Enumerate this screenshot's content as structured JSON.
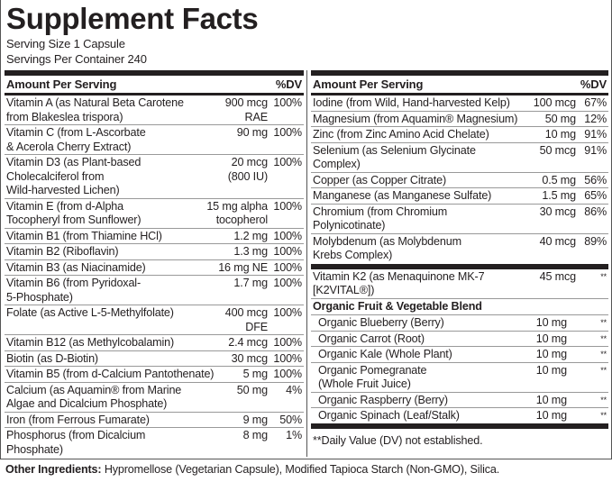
{
  "title": "Supplement Facts",
  "serving_size": "Serving Size 1 Capsule",
  "servings_per_container": "Servings Per Container 240",
  "header": {
    "amount": "Amount Per Serving",
    "dv": "%DV"
  },
  "left": [
    {
      "name": "Vitamin A (as Natural Beta Carotene\n from Blakeslea trispora)",
      "amount": "900 mcg\nRAE",
      "dv": "100%"
    },
    {
      "name": "Vitamin C (from L-Ascorbate\n & Acerola Cherry Extract)",
      "amount": "90 mg",
      "dv": "100%"
    },
    {
      "name": "Vitamin D3 (as Plant-based\n Cholecalciferol from\n  Wild-harvested Lichen)",
      "amount": "20 mcg\n(800 IU)",
      "dv": "100%"
    },
    {
      "name": "Vitamin E (from d-Alpha\n Tocopheryl from Sunflower)",
      "amount": "15 mg alpha\ntocopherol",
      "dv": "100%"
    },
    {
      "name": "Vitamin B1 (from Thiamine HCl)",
      "amount": "1.2 mg",
      "dv": "100%"
    },
    {
      "name": "Vitamin B2 (Riboflavin)",
      "amount": "1.3 mg",
      "dv": "100%"
    },
    {
      "name": "Vitamin B3 (as Niacinamide)",
      "amount": "16 mg NE",
      "dv": "100%"
    },
    {
      "name": "Vitamin B6 (from Pyridoxal-\n 5-Phosphate)",
      "amount": "1.7 mg",
      "dv": "100%"
    },
    {
      "name": "Folate (as Active L-5-Methylfolate)",
      "amount": "400 mcg\nDFE",
      "dv": "100%"
    },
    {
      "name": "Vitamin B12 (as Methylcobalamin)",
      "amount": "2.4 mcg",
      "dv": "100%"
    },
    {
      "name": "Biotin (as D-Biotin)",
      "amount": "30 mcg",
      "dv": "100%"
    },
    {
      "name": "Vitamin B5 (from d-Calcium Pantothenate)",
      "amount": "5 mg",
      "dv": "100%"
    },
    {
      "name": "Calcium (as Aquamin® from Marine\n Algae and Dicalcium Phosphate)",
      "amount": "50 mg",
      "dv": "4%"
    },
    {
      "name": "Iron (from Ferrous Fumarate)",
      "amount": "9 mg",
      "dv": "50%"
    },
    {
      "name": "Phosphorus (from Dicalcium\n Phosphate)",
      "amount": "8 mg",
      "dv": "1%"
    }
  ],
  "right": [
    {
      "name": "Iodine (from Wild, Hand-harvested Kelp)",
      "amount": "100 mcg",
      "dv": "67%"
    },
    {
      "name": "Magnesium (from Aquamin® Magnesium)",
      "amount": "50 mg",
      "dv": "12%"
    },
    {
      "name": "Zinc (from Zinc Amino Acid Chelate)",
      "amount": "10 mg",
      "dv": "91%"
    },
    {
      "name": "Selenium (as Selenium Glycinate\n Complex)",
      "amount": "50 mcg",
      "dv": "91%"
    },
    {
      "name": "Copper (as Copper Citrate)",
      "amount": "0.5 mg",
      "dv": "56%"
    },
    {
      "name": "Manganese (as Manganese Sulfate)",
      "amount": "1.5 mg",
      "dv": "65%"
    },
    {
      "name": "Chromium (from Chromium\n Polynicotinate)",
      "amount": "30 mcg",
      "dv": "86%"
    },
    {
      "name": "Molybdenum (as Molybdenum\n Krebs Complex)",
      "amount": "40 mcg",
      "dv": "89%"
    }
  ],
  "k2": {
    "name": "Vitamin K2 (as Menaquinone MK-7\n [K2VITAL®])",
    "amount": "45 mcg",
    "dv": "**"
  },
  "blend": {
    "title": "Organic Fruit & Vegetable Blend",
    "items": [
      {
        "name": "Organic Blueberry (Berry)",
        "amount": "10 mg",
        "dv": "**"
      },
      {
        "name": "Organic Carrot (Root)",
        "amount": "10 mg",
        "dv": "**"
      },
      {
        "name": "Organic Kale (Whole Plant)",
        "amount": "10 mg",
        "dv": "**"
      },
      {
        "name": "Organic Pomegranate\n (Whole Fruit Juice)",
        "amount": "10 mg",
        "dv": "**"
      },
      {
        "name": "Organic Raspberry (Berry)",
        "amount": "10 mg",
        "dv": "**"
      },
      {
        "name": "Organic Spinach (Leaf/Stalk)",
        "amount": "10 mg",
        "dv": "**"
      }
    ]
  },
  "footnote": "**Daily Value (DV) not established.",
  "other": {
    "label": "Other Ingredients:",
    "text": " Hypromellose (Vegetarian Capsule), Modified Tapioca Starch (Non-GMO), Silica."
  }
}
